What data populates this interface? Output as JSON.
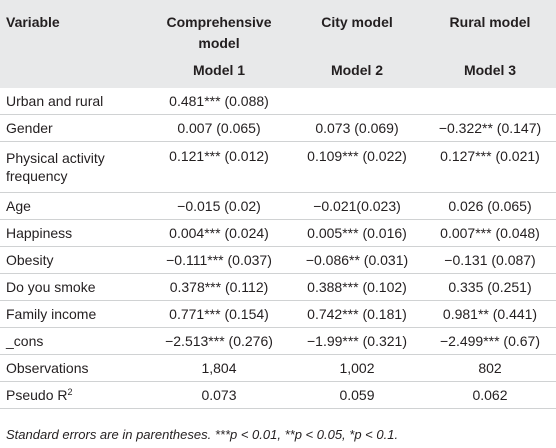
{
  "headers": {
    "variable": "Variable",
    "col1_line1": "Comprehensive",
    "col1_line2": "model",
    "col2": "City model",
    "col3": "Rural model",
    "model1": "Model 1",
    "model2": "Model 2",
    "model3": "Model 3"
  },
  "rows": [
    {
      "label": "Urban and rural",
      "m1": "0.481*** (0.088)",
      "m2": "",
      "m3": ""
    },
    {
      "label": "Gender",
      "m1": "0.007 (0.065)",
      "m2": "0.073 (0.069)",
      "m3": "−0.322** (0.147)"
    },
    {
      "label": "Physical activity frequency",
      "m1": "0.121*** (0.012)",
      "m2": "0.109*** (0.022)",
      "m3": "0.127*** (0.021)"
    },
    {
      "label": "Age",
      "m1": "−0.015 (0.02)",
      "m2": "−0.021(0.023)",
      "m3": "0.026 (0.065)"
    },
    {
      "label": "Happiness",
      "m1": "0.004*** (0.024)",
      "m2": "0.005*** (0.016)",
      "m3": "0.007*** (0.048)"
    },
    {
      "label": "Obesity",
      "m1": "−0.111*** (0.037)",
      "m2": "−0.086** (0.031)",
      "m3": "−0.131 (0.087)"
    },
    {
      "label": "Do you smoke",
      "m1": "0.378*** (0.112)",
      "m2": "0.388*** (0.102)",
      "m3": "0.335 (0.251)"
    },
    {
      "label": "Family income",
      "m1": "0.771*** (0.154)",
      "m2": "0.742*** (0.181)",
      "m3": "0.981** (0.441)"
    },
    {
      "label": "_cons",
      "m1": "−2.513*** (0.276)",
      "m2": "−1.99*** (0.321)",
      "m3": "−2.499*** (0.67)"
    },
    {
      "label": "Observations",
      "m1": "1,804",
      "m2": "1,002",
      "m3": "802"
    }
  ],
  "pseudo": {
    "label": "Pseudo R",
    "sup": "2",
    "m1": "0.073",
    "m2": "0.059",
    "m3": "0.062"
  },
  "note": "Standard errors are in parentheses. ***p < 0.01, **p < 0.05, *p < 0.1."
}
